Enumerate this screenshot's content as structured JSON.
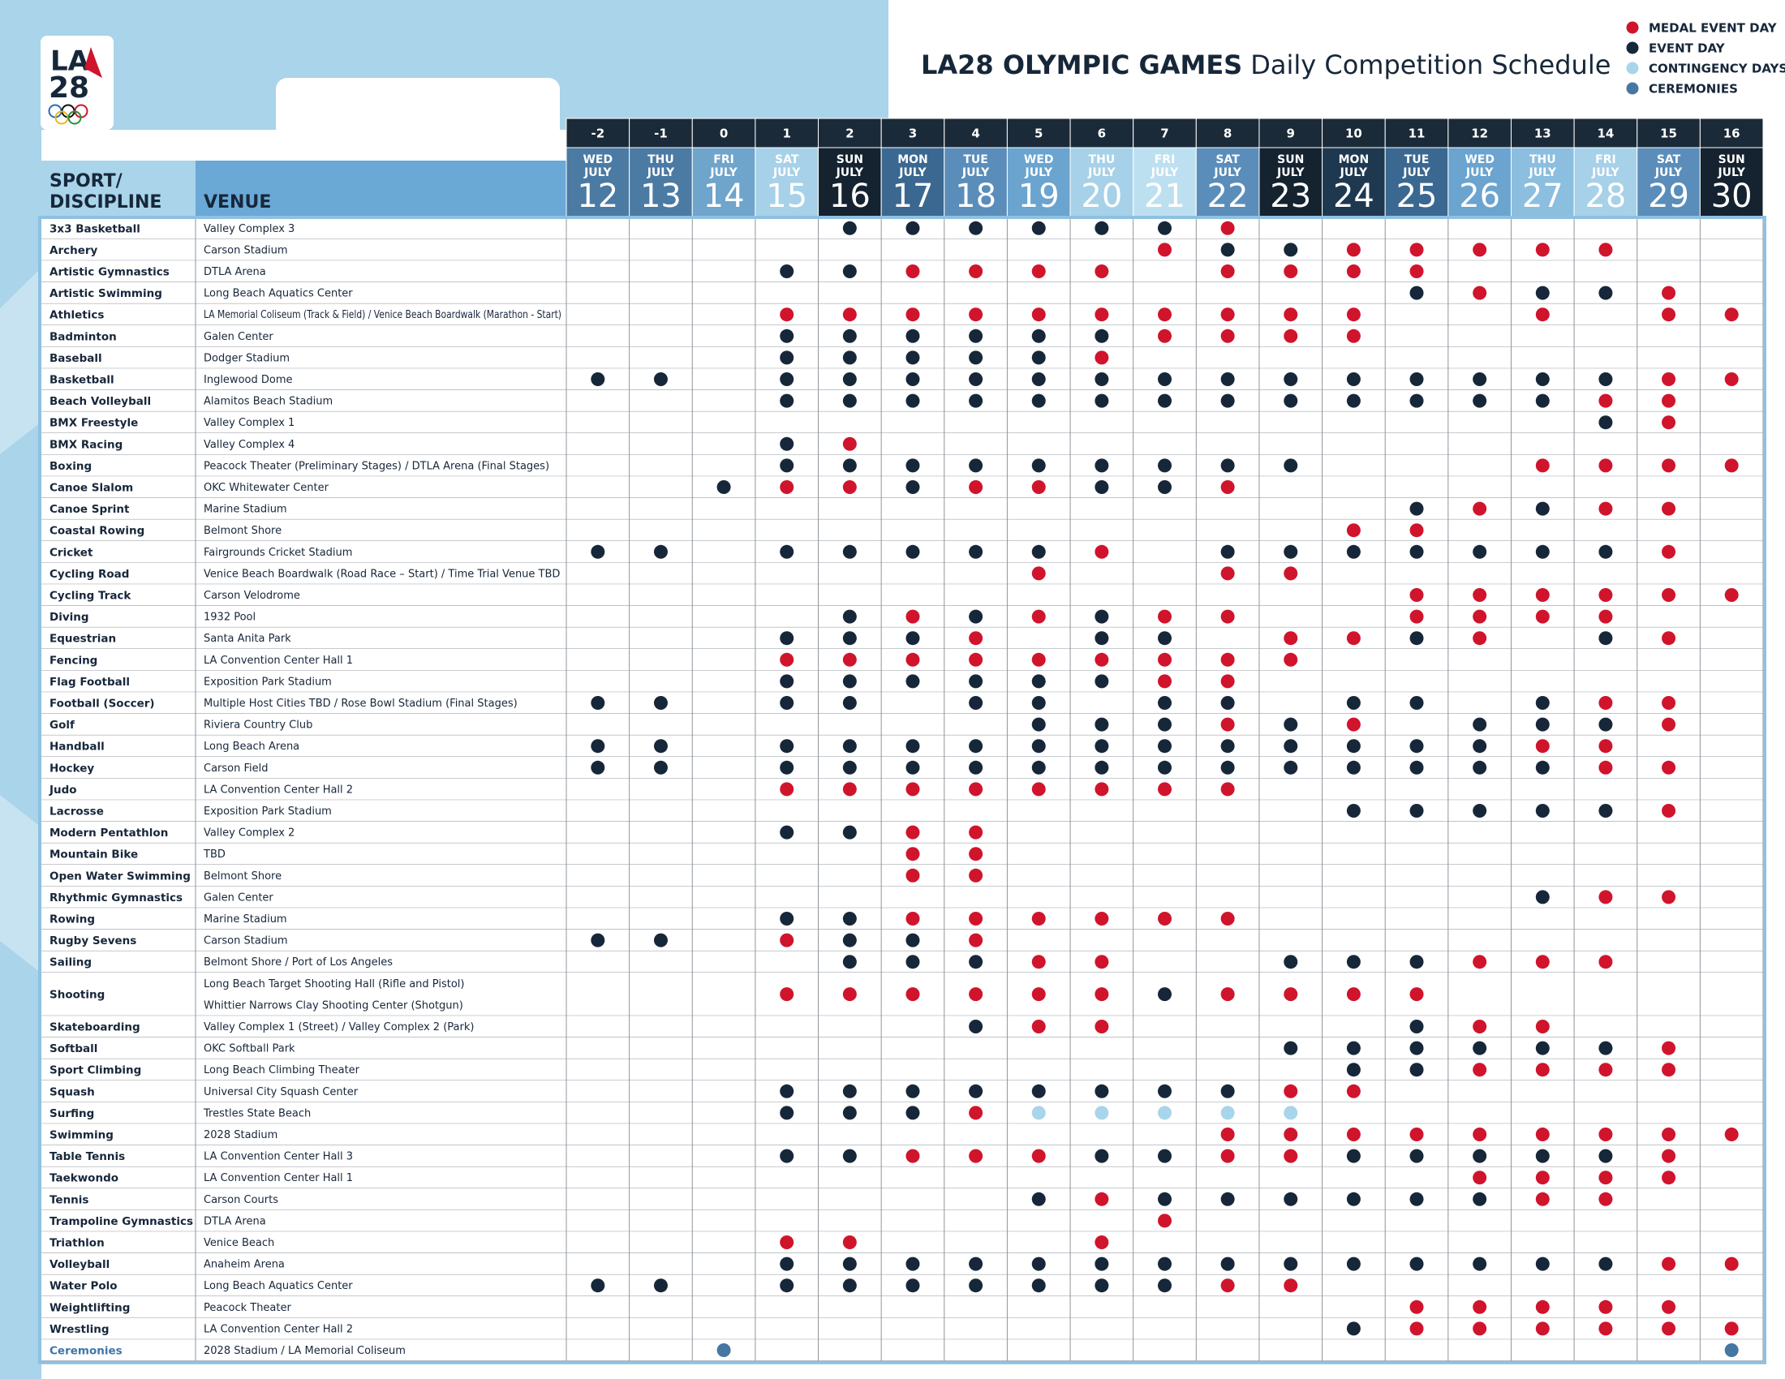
{
  "logo": {
    "line1": "LA",
    "line2": "28"
  },
  "title": {
    "bold": "LA28 OLYMPIC GAMES",
    "rest": "Daily Competition Schedule"
  },
  "legend": [
    {
      "code": "m",
      "label": "MEDAL EVENT DAY",
      "color": "#d0142c"
    },
    {
      "code": "e",
      "label": "EVENT DAY",
      "color": "#17273a"
    },
    {
      "code": "c",
      "label": "CONTINGENCY DAYS",
      "color": "#a9d5ea"
    },
    {
      "code": "r",
      "label": "CEREMONIES",
      "color": "#4677a3"
    }
  ],
  "header": {
    "sport": [
      "SPORT/",
      "DISCIPLINE"
    ],
    "venue": "VENUE"
  },
  "days": [
    {
      "day": "-2",
      "weekday": "WED",
      "month": "JULY",
      "date": "12",
      "color": "#4b7aa3"
    },
    {
      "day": "-1",
      "weekday": "THU",
      "month": "JULY",
      "date": "13",
      "color": "#4b7aa3"
    },
    {
      "day": "0",
      "weekday": "FRI",
      "month": "JULY",
      "date": "14",
      "color": "#6fa4cb"
    },
    {
      "day": "1",
      "weekday": "SAT",
      "month": "JULY",
      "date": "15",
      "color": "#a6d1e8"
    },
    {
      "day": "2",
      "weekday": "SUN",
      "month": "JULY",
      "date": "16",
      "color": "#15222f"
    },
    {
      "day": "3",
      "weekday": "MON",
      "month": "JULY",
      "date": "17",
      "color": "#3a6890"
    },
    {
      "day": "4",
      "weekday": "TUE",
      "month": "JULY",
      "date": "18",
      "color": "#5a8dba"
    },
    {
      "day": "5",
      "weekday": "WED",
      "month": "JULY",
      "date": "19",
      "color": "#6aa4cf"
    },
    {
      "day": "6",
      "weekday": "THU",
      "month": "JULY",
      "date": "20",
      "color": "#a6d1e8"
    },
    {
      "day": "7",
      "weekday": "FRI",
      "month": "JULY",
      "date": "21",
      "color": "#bde0f1"
    },
    {
      "day": "8",
      "weekday": "SAT",
      "month": "JULY",
      "date": "22",
      "color": "#5a8dba"
    },
    {
      "day": "9",
      "weekday": "SUN",
      "month": "JULY",
      "date": "23",
      "color": "#15222f"
    },
    {
      "day": "10",
      "weekday": "MON",
      "month": "JULY",
      "date": "24",
      "color": "#1e3850"
    },
    {
      "day": "11",
      "weekday": "TUE",
      "month": "JULY",
      "date": "25",
      "color": "#3a6890"
    },
    {
      "day": "12",
      "weekday": "WED",
      "month": "JULY",
      "date": "26",
      "color": "#6aa4cf"
    },
    {
      "day": "13",
      "weekday": "THU",
      "month": "JULY",
      "date": "27",
      "color": "#8bbedf"
    },
    {
      "day": "14",
      "weekday": "FRI",
      "month": "JULY",
      "date": "28",
      "color": "#a6d1e8"
    },
    {
      "day": "15",
      "weekday": "SAT",
      "month": "JULY",
      "date": "29",
      "color": "#5a8dba"
    },
    {
      "day": "16",
      "weekday": "SUN",
      "month": "JULY",
      "date": "30",
      "color": "#15222f"
    }
  ],
  "rows": [
    {
      "sport": "3x3 Basketball",
      "venue": "Valley Complex 3",
      "days": "....eeeeeem........"
    },
    {
      "sport": "Archery",
      "venue": "Carson Stadium",
      "days": ".........meemmmmm.."
    },
    {
      "sport": "Artistic Gymnastics",
      "venue": "DTLA Arena",
      "days": "...eemmmm.mmmm....."
    },
    {
      "sport": "Artistic Swimming",
      "venue": "Long Beach Aquatics Center",
      "days": ".............emeem."
    },
    {
      "sport": "Athletics",
      "venue": "LA Memorial Coliseum (Track & Field) / Venice Beach Boardwalk (Marathon - Start)",
      "days": "...mmmmmmmmmm..m.mm"
    },
    {
      "sport": "Badminton",
      "venue": "Galen Center",
      "days": "...eeeeeemmmm......"
    },
    {
      "sport": "Baseball",
      "venue": "Dodger Stadium",
      "days": "...eeeeem.........."
    },
    {
      "sport": "Basketball",
      "venue": "Inglewood Dome",
      "days": "ee.eeeeeeeeeeeeeemm"
    },
    {
      "sport": "Beach Volleyball",
      "venue": "Alamitos Beach Stadium",
      "days": "...eeeeeeeeeeeeemm."
    },
    {
      "sport": "BMX Freestyle",
      "venue": "Valley Complex 1",
      "days": "................em."
    },
    {
      "sport": "BMX Racing",
      "venue": "Valley Complex 4",
      "days": "...em.............."
    },
    {
      "sport": "Boxing",
      "venue": "Peacock Theater (Preliminary Stages) / DTLA Arena (Final Stages)",
      "days": "...eeeeeeeee...mmmm"
    },
    {
      "sport": "Canoe Slalom",
      "venue": "OKC Whitewater Center",
      "days": "..emmemmeem........"
    },
    {
      "sport": "Canoe Sprint",
      "venue": "Marine Stadium",
      "days": ".............ememm."
    },
    {
      "sport": "Coastal Rowing",
      "venue": "Belmont Shore",
      "days": "............mm....."
    },
    {
      "sport": "Cricket",
      "venue": "Fairgrounds Cricket Stadium",
      "days": "ee.eeeeem.eeeeeeem."
    },
    {
      "sport": "Cycling Road",
      "venue": "Venice Beach Boardwalk (Road Race – Start) / Time Trial Venue TBD",
      "days": ".......m..mm......."
    },
    {
      "sport": "Cycling Track",
      "venue": "Carson Velodrome",
      "days": ".............mmmmmm"
    },
    {
      "sport": "Diving",
      "venue": "1932 Pool",
      "days": "....emememm..mmmm.."
    },
    {
      "sport": "Equestrian",
      "venue": "Santa Anita Park",
      "days": "...eeem.ee.mmem.em."
    },
    {
      "sport": "Fencing",
      "venue": "LA Convention Center Hall 1",
      "days": "...mmmmmmmmm......."
    },
    {
      "sport": "Flag Football",
      "venue": "Exposition Park Stadium",
      "days": "...eeeeeemm........"
    },
    {
      "sport": "Football (Soccer)",
      "venue": "Multiple Host Cities TBD / Rose Bowl Stadium (Final Stages)",
      "days": "ee.ee.ee.ee.ee.emm."
    },
    {
      "sport": "Golf",
      "venue": "Riviera Country Club",
      "days": ".......eeemem.eeem."
    },
    {
      "sport": "Handball",
      "venue": "Long Beach Arena",
      "days": "ee.eeeeeeeeeeeemm.."
    },
    {
      "sport": "Hockey",
      "venue": "Carson Field",
      "days": "ee.eeeeeeeeeeeeemm."
    },
    {
      "sport": "Judo",
      "venue": "LA Convention Center Hall 2",
      "days": "...mmmmmmmm........"
    },
    {
      "sport": "Lacrosse",
      "venue": "Exposition Park Stadium",
      "days": "............eeeeem."
    },
    {
      "sport": "Modern Pentathlon",
      "venue": "Valley Complex 2",
      "days": "...eemm............"
    },
    {
      "sport": "Mountain Bike",
      "venue": "TBD",
      "days": ".....mm............"
    },
    {
      "sport": "Open Water Swimming",
      "venue": "Belmont Shore",
      "days": ".....mm............"
    },
    {
      "sport": "Rhythmic Gymnastics",
      "venue": "Galen Center",
      "days": "...............emm."
    },
    {
      "sport": "Rowing",
      "venue": "Marine Stadium",
      "days": "...eemmmmmm........"
    },
    {
      "sport": "Rugby Sevens",
      "venue": "Carson Stadium",
      "days": "ee.meem............"
    },
    {
      "sport": "Sailing",
      "venue": "Belmont Shore / Port of Los Angeles",
      "days": "....eeemm..eeemmm.."
    },
    {
      "sport": "Shooting",
      "venue": [
        "Long Beach Target Shooting Hall (Rifle and Pistol)",
        "Whittier Narrows Clay Shooting Center (Shotgun)"
      ],
      "days": "...mmmmmmemmmm....."
    },
    {
      "sport": "Skateboarding",
      "venue": "Valley Complex 1 (Street) / Valley Complex 2 (Park)",
      "days": "......emm....emm..."
    },
    {
      "sport": "Softball",
      "venue": "OKC Softball Park",
      "days": "...........eeeeeem."
    },
    {
      "sport": "Sport Climbing",
      "venue": "Long Beach Climbing Theater",
      "days": "............eemmmm."
    },
    {
      "sport": "Squash",
      "venue": "Universal City Squash Center",
      "days": "...eeeeeeeemm......"
    },
    {
      "sport": "Surfing",
      "venue": "Trestles State Beach",
      "days": "...eeemccccc......."
    },
    {
      "sport": "Swimming",
      "venue": "2028 Stadium",
      "days": "..........mmmmmmmmm"
    },
    {
      "sport": "Table Tennis",
      "venue": "LA Convention Center Hall 3",
      "days": "...eemmmeemmeeeeem."
    },
    {
      "sport": "Taekwondo",
      "venue": "LA Convention Center Hall 1",
      "days": "..............mmmm."
    },
    {
      "sport": "Tennis",
      "venue": "Carson Courts",
      "days": ".......emeeeeeemm.."
    },
    {
      "sport": "Trampoline Gymnastics",
      "venue": "DTLA Arena",
      "days": ".........m........."
    },
    {
      "sport": "Triathlon",
      "venue": "Venice Beach",
      "days": "...mm...m.........."
    },
    {
      "sport": "Volleyball",
      "venue": "Anaheim Arena",
      "days": "...eeeeeeeeeeeeeemm"
    },
    {
      "sport": "Water Polo",
      "venue": "Long Beach Aquatics Center",
      "days": "ee.eeeeeeemm......."
    },
    {
      "sport": "Weightlifting",
      "venue": "Peacock Theater",
      "days": ".............mmmmm."
    },
    {
      "sport": "Wrestling",
      "venue": "LA Convention Center Hall 2",
      "days": "............emmmmmm"
    },
    {
      "sport": "Ceremonies",
      "venue": "2028 Stadium / LA Memorial Coliseum",
      "days": "..r...............r"
    }
  ]
}
